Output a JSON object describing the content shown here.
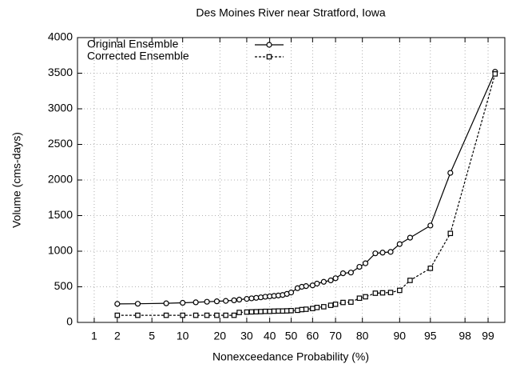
{
  "chart_data": {
    "type": "line",
    "title": "Des Moines River near Stratford, Iowa",
    "xlabel": "Nonexceedance Probability (%)",
    "ylabel": "Volume (cms-days)",
    "xscale": "probability",
    "x": [
      2,
      3.5,
      7,
      10,
      13,
      16,
      19,
      22,
      25,
      27,
      30,
      32,
      34,
      36,
      38,
      40,
      42,
      44,
      46,
      48,
      50,
      53,
      55,
      57,
      60,
      62,
      65,
      68,
      70,
      73,
      76,
      79,
      81,
      84,
      86,
      88,
      90,
      92,
      95,
      97,
      99.2
    ],
    "series": [
      {
        "name": "Original Ensemble",
        "color": "#000000",
        "dash": "solid",
        "marker": "circle",
        "values": [
          260,
          262,
          268,
          275,
          282,
          290,
          296,
          302,
          310,
          320,
          330,
          338,
          345,
          352,
          360,
          366,
          372,
          378,
          385,
          400,
          420,
          480,
          500,
          510,
          520,
          545,
          570,
          590,
          620,
          690,
          700,
          780,
          830,
          970,
          980,
          990,
          1100,
          1190,
          1360,
          2100,
          3520
        ]
      },
      {
        "name": "Corrected Ensemble",
        "color": "#000000",
        "dash": "dashed",
        "marker": "square",
        "values": [
          100,
          100,
          100,
          100,
          100,
          100,
          100,
          100,
          100,
          140,
          145,
          148,
          150,
          152,
          155,
          155,
          158,
          160,
          160,
          162,
          165,
          170,
          180,
          185,
          195,
          210,
          220,
          240,
          255,
          280,
          285,
          340,
          360,
          410,
          415,
          420,
          450,
          590,
          760,
          1250,
          3490
        ]
      }
    ],
    "xlim": [
      0.58,
      99.42
    ],
    "xticks": [
      1,
      2,
      5,
      10,
      20,
      30,
      40,
      50,
      60,
      70,
      80,
      90,
      95,
      98,
      99
    ],
    "ylim": [
      0,
      4000
    ],
    "yticks": [
      0,
      500,
      1000,
      1500,
      2000,
      2500,
      3000,
      3500,
      4000
    ],
    "grid": true,
    "legend": "upper left"
  }
}
